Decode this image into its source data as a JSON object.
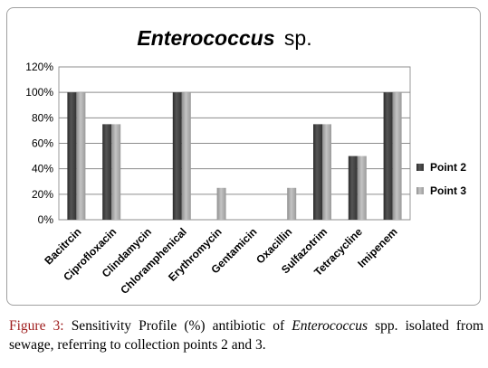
{
  "chart_data": {
    "type": "bar",
    "title_italic": "Enterococcus",
    "title_rest": "sp.",
    "categories": [
      "Bacitrcin",
      "Ciprofloxacin",
      "Clindamycin",
      "Chloramphenical",
      "Erythromycin",
      "Gentamicin",
      "Oxacillin",
      "Sulfazotrim",
      "Tetracycline",
      "Imipenem"
    ],
    "series": [
      {
        "name": "Point 2",
        "color": "#474747",
        "values": [
          100,
          75,
          0,
          100,
          0,
          0,
          0,
          75,
          50,
          100
        ]
      },
      {
        "name": "Point 3",
        "color": "#a6a6a6",
        "values": [
          100,
          75,
          0,
          100,
          25,
          0,
          25,
          75,
          50,
          100
        ]
      }
    ],
    "yticks": [
      "0%",
      "20%",
      "40%",
      "60%",
      "80%",
      "100%",
      "120%"
    ],
    "ylim": [
      0,
      120
    ],
    "grid": true,
    "legend_position": "right"
  },
  "caption": {
    "label": "Figure 3:",
    "text_before": "Sensitivity Profile (%) antibiotic of",
    "organism": "Enterococcus",
    "text_after": "spp. isolated from sewage, referring to collection points 2 and 3."
  }
}
